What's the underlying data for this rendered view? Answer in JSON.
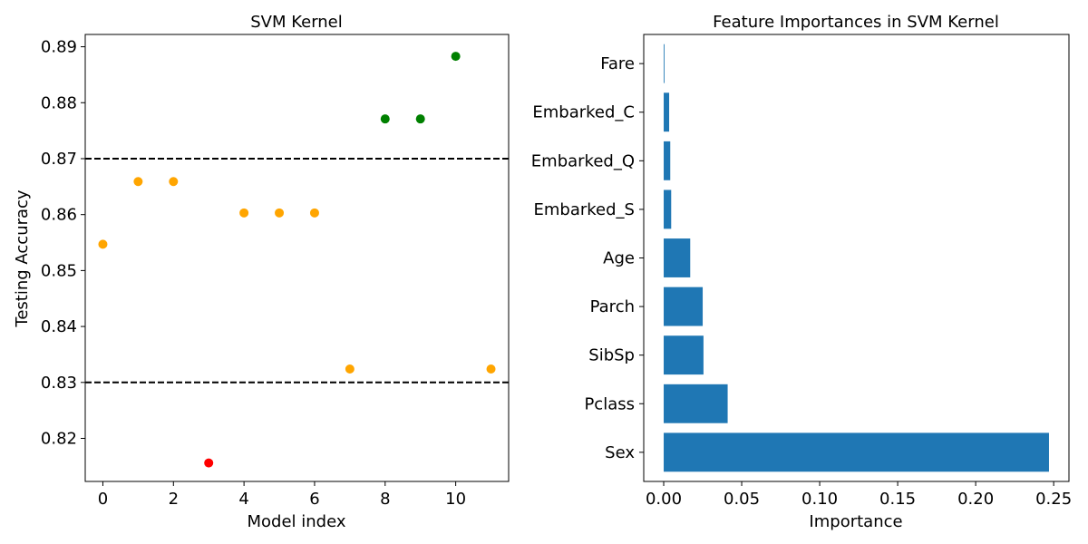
{
  "chart_data": [
    {
      "type": "scatter",
      "title": "SVM Kernel",
      "xlabel": "Model index",
      "ylabel": "Testing Accuracy",
      "xlim": [
        -0.5,
        11.5
      ],
      "ylim": [
        0.8123,
        0.8922
      ],
      "xticks": [
        0,
        2,
        4,
        6,
        8,
        10
      ],
      "xtick_labels": [
        "0",
        "2",
        "4",
        "6",
        "8",
        "10"
      ],
      "yticks": [
        0.82,
        0.83,
        0.84,
        0.85,
        0.86,
        0.87,
        0.88,
        0.89
      ],
      "ytick_labels": [
        "0.82",
        "0.83",
        "0.84",
        "0.85",
        "0.86",
        "0.87",
        "0.88",
        "0.89"
      ],
      "points": [
        {
          "x": 0,
          "y": 0.8547,
          "color": "#ffa500"
        },
        {
          "x": 1,
          "y": 0.8659,
          "color": "#ffa500"
        },
        {
          "x": 2,
          "y": 0.8659,
          "color": "#ffa500"
        },
        {
          "x": 3,
          "y": 0.8156,
          "color": "#ff0000"
        },
        {
          "x": 4,
          "y": 0.8603,
          "color": "#ffa500"
        },
        {
          "x": 5,
          "y": 0.8603,
          "color": "#ffa500"
        },
        {
          "x": 6,
          "y": 0.8603,
          "color": "#ffa500"
        },
        {
          "x": 7,
          "y": 0.8324,
          "color": "#ffa500"
        },
        {
          "x": 8,
          "y": 0.8771,
          "color": "#008000"
        },
        {
          "x": 9,
          "y": 0.8771,
          "color": "#008000"
        },
        {
          "x": 10,
          "y": 0.8883,
          "color": "#008000"
        },
        {
          "x": 11,
          "y": 0.8324,
          "color": "#ffa500"
        }
      ],
      "hlines": [
        {
          "y": 0.87,
          "style": "dashed",
          "color": "#000000"
        },
        {
          "y": 0.83,
          "style": "dashed",
          "color": "#000000"
        }
      ],
      "grid": false
    },
    {
      "type": "bar",
      "orientation": "horizontal",
      "title": "Feature Importances in SVM Kernel",
      "xlabel": "Importance",
      "ylabel": "",
      "categories": [
        "Sex",
        "Pclass",
        "SibSp",
        "Parch",
        "Age",
        "Embarked_S",
        "Embarked_Q",
        "Embarked_C",
        "Fare"
      ],
      "values": [
        0.247,
        0.041,
        0.0255,
        0.025,
        0.017,
        0.0048,
        0.0042,
        0.0035,
        0.0005
      ],
      "xlim": [
        -0.0128,
        0.2598
      ],
      "xticks": [
        0.0,
        0.05,
        0.1,
        0.15,
        0.2,
        0.25
      ],
      "xtick_labels": [
        "0.00",
        "0.05",
        "0.10",
        "0.15",
        "0.20",
        "0.25"
      ],
      "bar_color": "#1f77b4",
      "grid": false
    }
  ]
}
